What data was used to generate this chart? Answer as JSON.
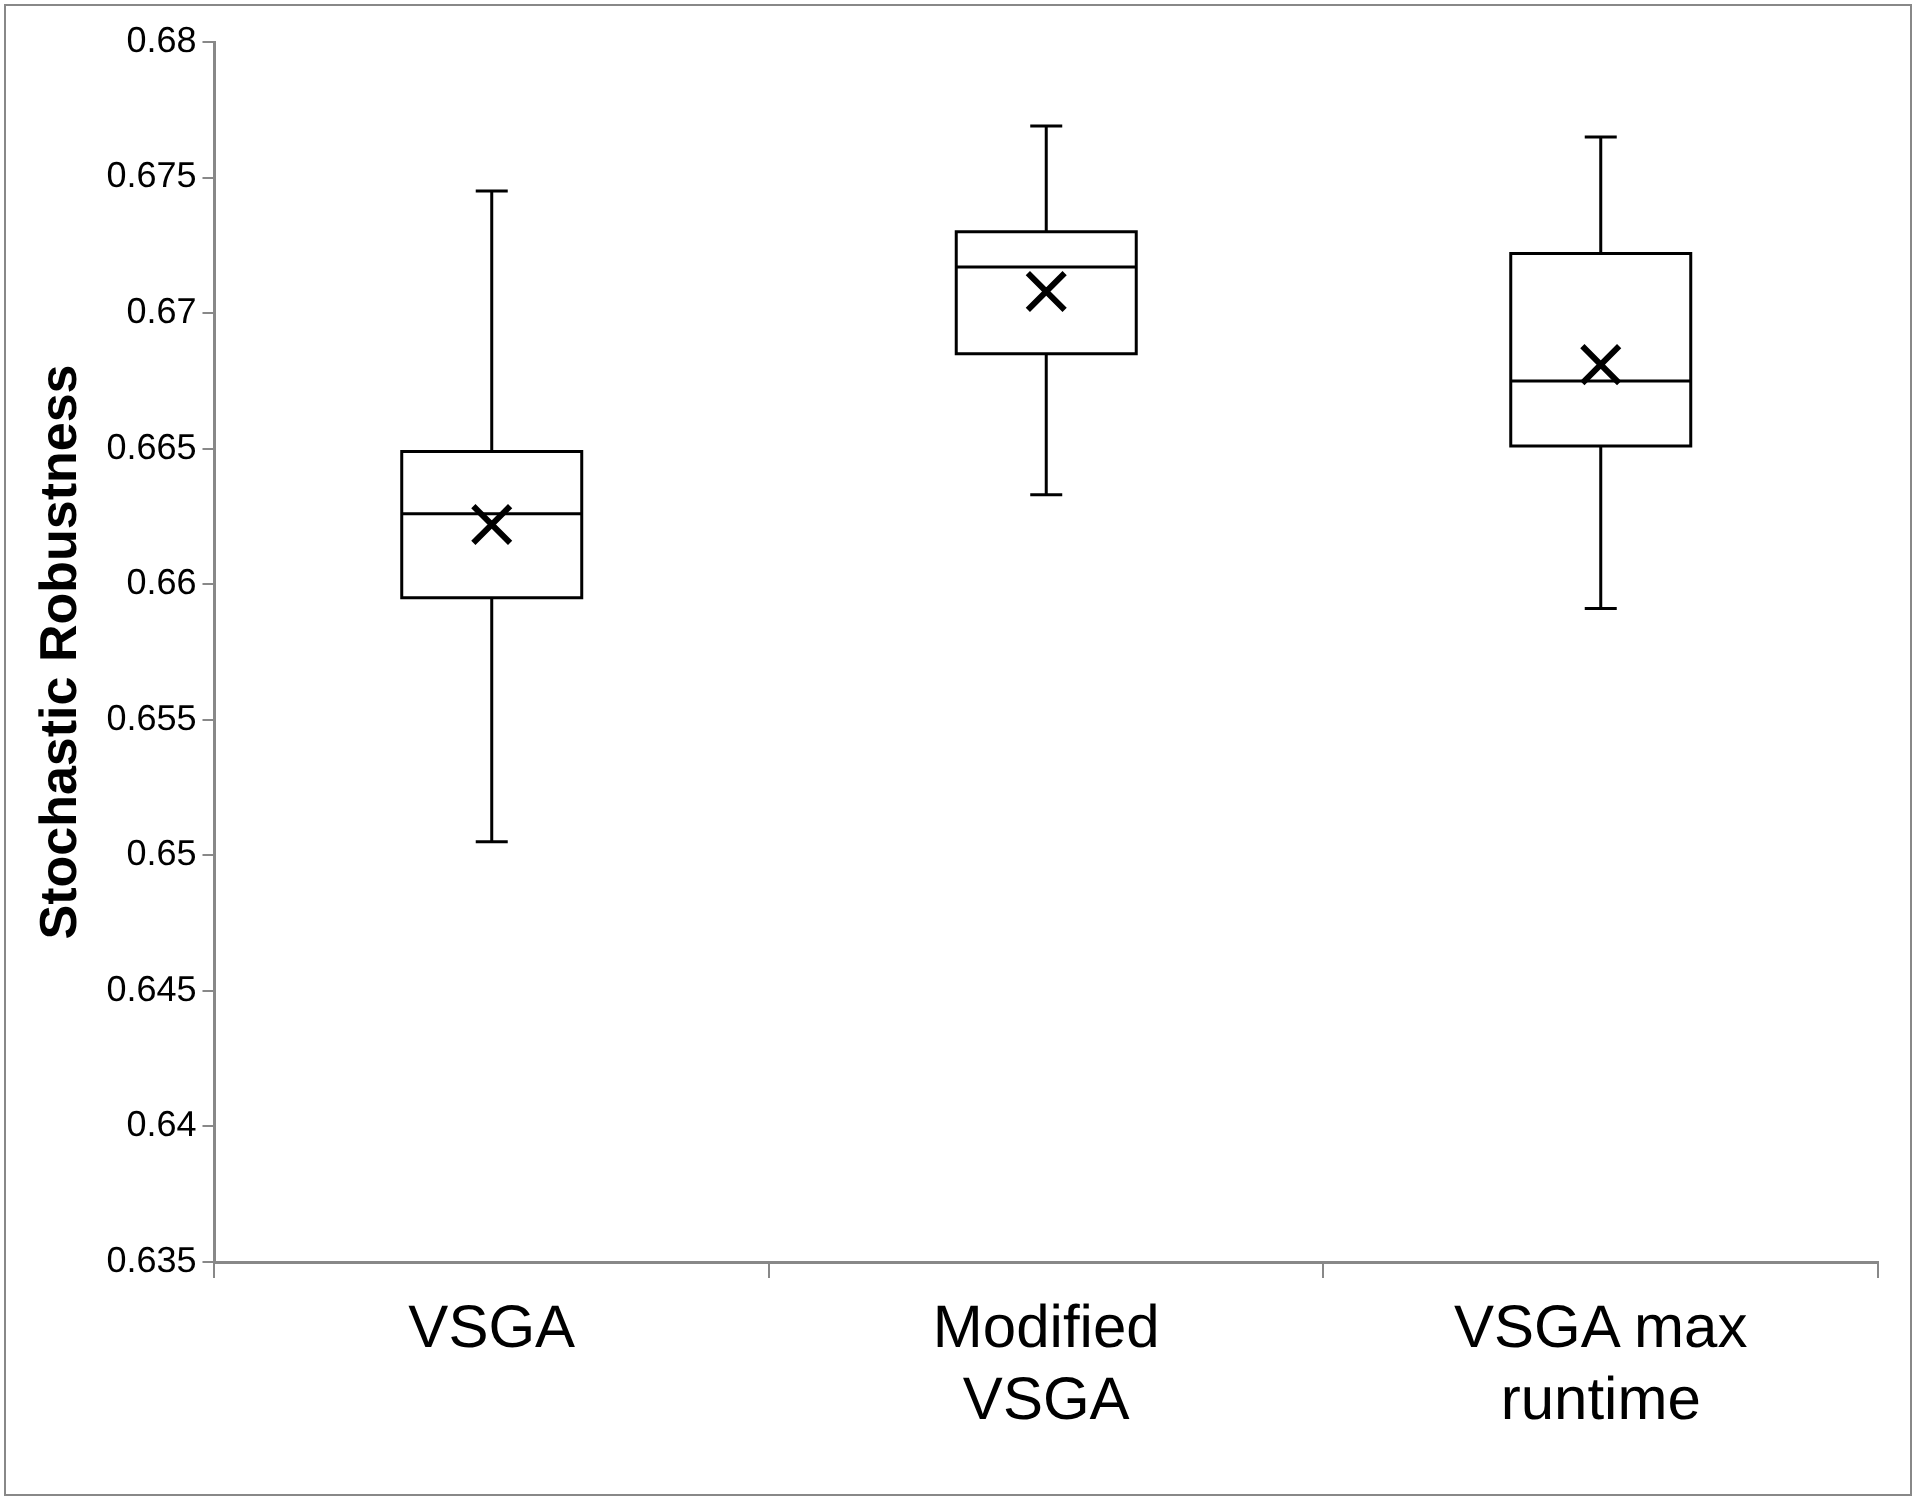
{
  "chart_data": {
    "type": "box",
    "ylabel": "Stochastic Robustness",
    "categories": [
      "VSGA",
      "Modified VSGA",
      "VSGA max runtime"
    ],
    "boxes": [
      {
        "low": 0.6505,
        "q1": 0.6595,
        "median": 0.6626,
        "q3": 0.6649,
        "high": 0.6745,
        "mean": 0.6622
      },
      {
        "low": 0.6633,
        "q1": 0.6685,
        "median": 0.6717,
        "q3": 0.673,
        "high": 0.6769,
        "mean": 0.6708
      },
      {
        "low": 0.6591,
        "q1": 0.6651,
        "median": 0.6675,
        "q3": 0.6722,
        "high": 0.6765,
        "mean": 0.6681
      }
    ],
    "ylim": [
      0.635,
      0.68
    ],
    "yticks": [
      0.635,
      0.64,
      0.645,
      0.65,
      0.655,
      0.66,
      0.665,
      0.67,
      0.675,
      0.68
    ],
    "grid": false,
    "legend": false,
    "marker": "cross"
  }
}
